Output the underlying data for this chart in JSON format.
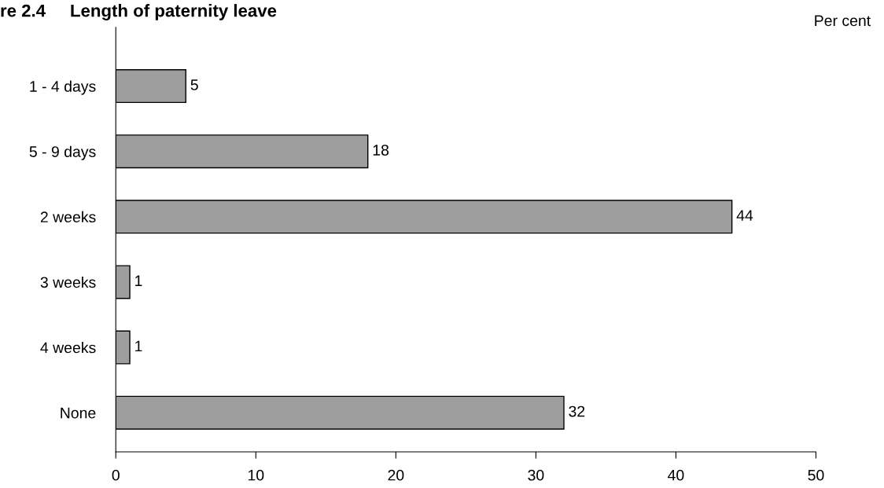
{
  "chart_data": {
    "type": "bar",
    "orientation": "horizontal",
    "title": "re 2.4     Length of paternity leave",
    "annotations": [
      "Per cent"
    ],
    "categories": [
      "1 - 4 days",
      "5 - 9 days",
      "2 weeks",
      "3 weeks",
      "4 weeks",
      "None"
    ],
    "values": [
      5,
      18,
      44,
      1,
      1,
      32
    ],
    "color": "#9e9e9e",
    "xlim": [
      0,
      50
    ],
    "xticks": [
      0,
      10,
      20,
      30,
      40,
      50
    ],
    "grid": false,
    "data_labels": true
  }
}
